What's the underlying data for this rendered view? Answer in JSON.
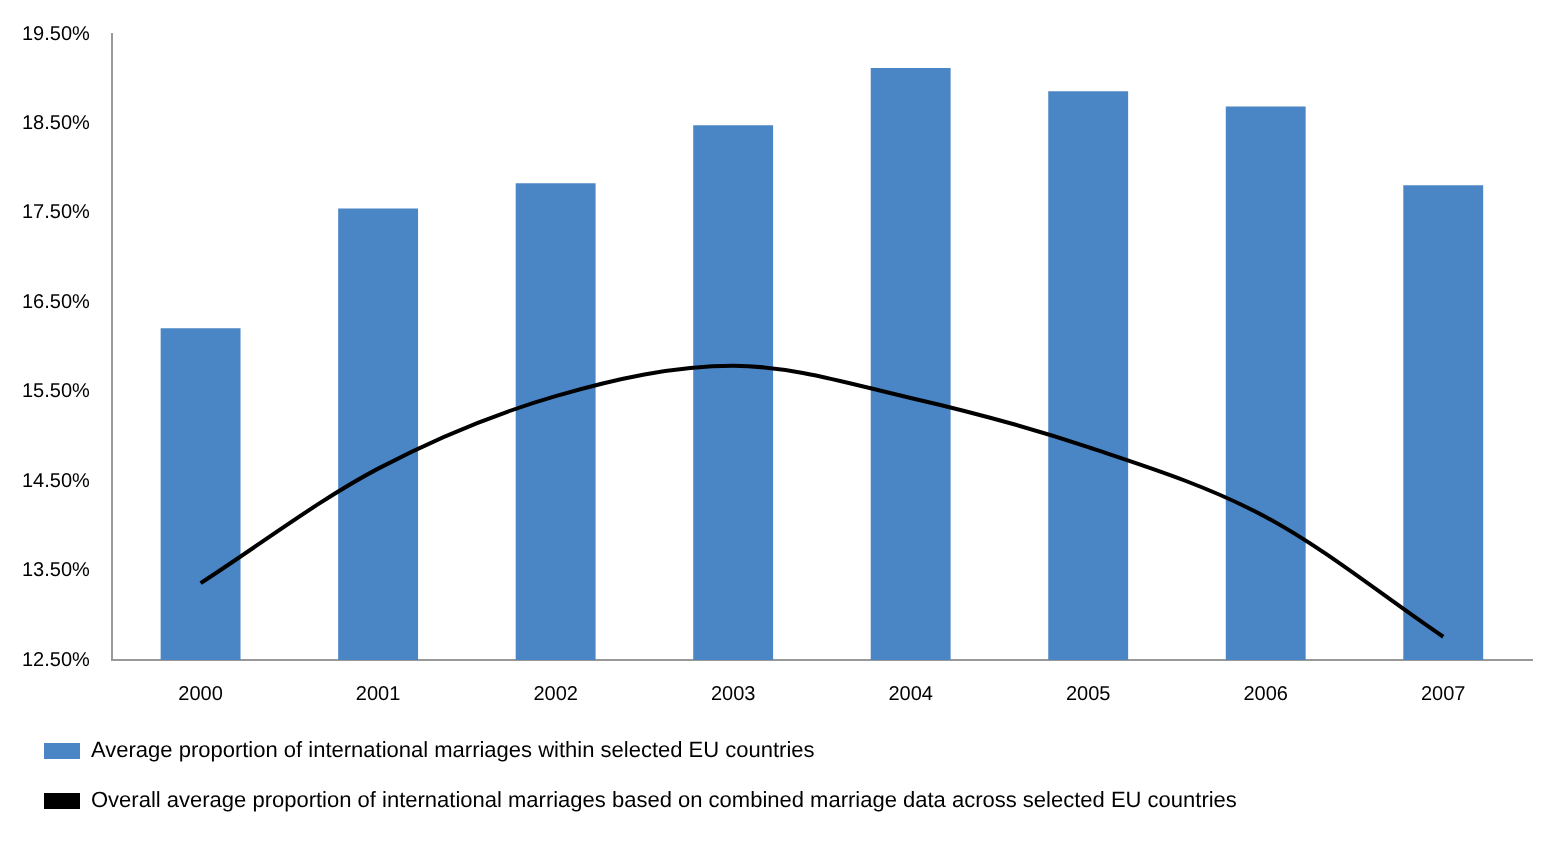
{
  "chart_data": {
    "type": "bar",
    "categories": [
      "2000",
      "2001",
      "2002",
      "2003",
      "2004",
      "2005",
      "2006",
      "2007"
    ],
    "series": [
      {
        "name": "Average proportion of international marriages within selected EU countries",
        "color": "#4a86c5",
        "values": [
          16.21,
          17.55,
          17.83,
          18.48,
          19.12,
          18.86,
          18.69,
          17.81
        ]
      },
      {
        "name": "Overall average proportion of international marriages based on combined marriage data across selected EU countries",
        "type": "line",
        "color": "#000000",
        "values": [
          13.36,
          14.64,
          15.45,
          15.79,
          15.43,
          14.88,
          14.1,
          12.76
        ]
      }
    ],
    "ylim": [
      12.5,
      19.5
    ],
    "yticks": [
      {
        "value": 12.5,
        "label": "12.50%"
      },
      {
        "value": 13.5,
        "label": "13.50%"
      },
      {
        "value": 14.5,
        "label": "14.50%"
      },
      {
        "value": 15.5,
        "label": "15.50%"
      },
      {
        "value": 16.5,
        "label": "16.50%"
      },
      {
        "value": 17.5,
        "label": "17.50%"
      },
      {
        "value": 18.5,
        "label": "18.50%"
      },
      {
        "value": 19.5,
        "label": "19.50%"
      }
    ],
    "grid": false,
    "legend": "bottom",
    "marker": "none"
  }
}
